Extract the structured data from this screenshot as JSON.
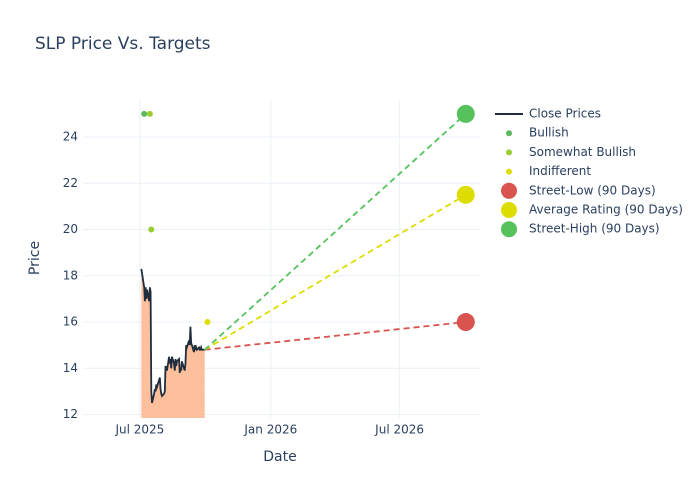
{
  "chart_data": {
    "type": "line",
    "title": "SLP Price Vs. Targets",
    "x_label": "Date",
    "y_label": "Price",
    "xlim": [
      "2025-04-12",
      "2026-10-22"
    ],
    "xticks": [
      {
        "value": "2025-07-01",
        "label": "Jul 2025"
      },
      {
        "value": "2026-01-01",
        "label": "Jan 2026"
      },
      {
        "value": "2026-07-01",
        "label": "Jul 2026"
      }
    ],
    "ylim": [
      11.85,
      25.6
    ],
    "yticks": [
      12,
      14,
      16,
      18,
      20,
      22,
      24
    ],
    "grid": true,
    "series": [
      {
        "name": "Close Prices",
        "mode": "line",
        "color": "#1f2d3d",
        "fill": "#fdbf9c",
        "x": [
          "2025-07-03",
          "2025-07-07",
          "2025-07-08",
          "2025-07-09",
          "2025-07-10",
          "2025-07-11",
          "2025-07-14",
          "2025-07-15",
          "2025-07-16",
          "2025-07-17",
          "2025-07-18",
          "2025-07-21",
          "2025-07-22",
          "2025-07-23",
          "2025-07-24",
          "2025-07-25",
          "2025-07-28",
          "2025-07-29",
          "2025-07-30",
          "2025-07-31",
          "2025-08-01",
          "2025-08-04",
          "2025-08-05",
          "2025-08-06",
          "2025-08-07",
          "2025-08-08",
          "2025-08-11",
          "2025-08-12",
          "2025-08-13",
          "2025-08-14",
          "2025-08-15",
          "2025-08-18",
          "2025-08-19",
          "2025-08-20",
          "2025-08-21",
          "2025-08-22",
          "2025-08-25",
          "2025-08-26",
          "2025-08-27",
          "2025-08-28",
          "2025-08-29",
          "2025-09-02",
          "2025-09-03",
          "2025-09-04",
          "2025-09-05",
          "2025-09-08",
          "2025-09-09",
          "2025-09-10",
          "2025-09-11",
          "2025-09-12",
          "2025-09-15",
          "2025-09-16",
          "2025-09-17",
          "2025-09-18",
          "2025-09-19",
          "2025-09-22",
          "2025-09-23",
          "2025-09-24",
          "2025-09-25",
          "2025-09-26",
          "2025-09-29",
          "2025-09-30"
        ],
        "values": [
          18.3,
          17.5,
          16.9,
          17.5,
          17.0,
          17.4,
          16.9,
          17.5,
          17.3,
          13.0,
          12.5,
          12.9,
          13.1,
          13.0,
          13.3,
          13.2,
          13.5,
          13.6,
          13.1,
          12.9,
          12.8,
          12.9,
          13.0,
          14.1,
          14.0,
          13.9,
          14.5,
          14.2,
          14.4,
          14.0,
          14.5,
          14.2,
          13.9,
          14.4,
          14.1,
          14.3,
          14.4,
          13.8,
          14.0,
          13.9,
          14.3,
          13.9,
          14.2,
          15.0,
          14.9,
          15.2,
          15.0,
          15.8,
          15.1,
          15.0,
          14.7,
          15.0,
          14.8,
          14.9,
          14.8,
          14.9,
          14.8,
          14.8,
          14.9,
          14.8,
          14.8,
          14.8
        ]
      },
      {
        "name": "Bullish",
        "mode": "dot",
        "color": "#5cb85c",
        "x": [
          "2025-07-07"
        ],
        "values": [
          25
        ]
      },
      {
        "name": "Somewhat Bullish",
        "mode": "dot",
        "color": "#9acd32",
        "x": [
          "2025-07-15",
          "2025-07-17"
        ],
        "values": [
          25,
          20
        ]
      },
      {
        "name": "Indifferent",
        "mode": "dot",
        "color": "#dddd00",
        "x": [
          "2025-10-04"
        ],
        "values": [
          16
        ]
      },
      {
        "name": "Street-Low (90 Days)",
        "mode": "target",
        "color": "#d9534f",
        "x": [
          "2026-10-02"
        ],
        "values": [
          16
        ]
      },
      {
        "name": "Average Rating (90 Days)",
        "mode": "target",
        "color": "#dddd00",
        "x": [
          "2026-10-02"
        ],
        "values": [
          21.5
        ]
      },
      {
        "name": "Street-High (90 Days)",
        "mode": "target",
        "color": "#55c25c",
        "x": [
          "2026-10-02"
        ],
        "values": [
          25
        ]
      }
    ]
  }
}
